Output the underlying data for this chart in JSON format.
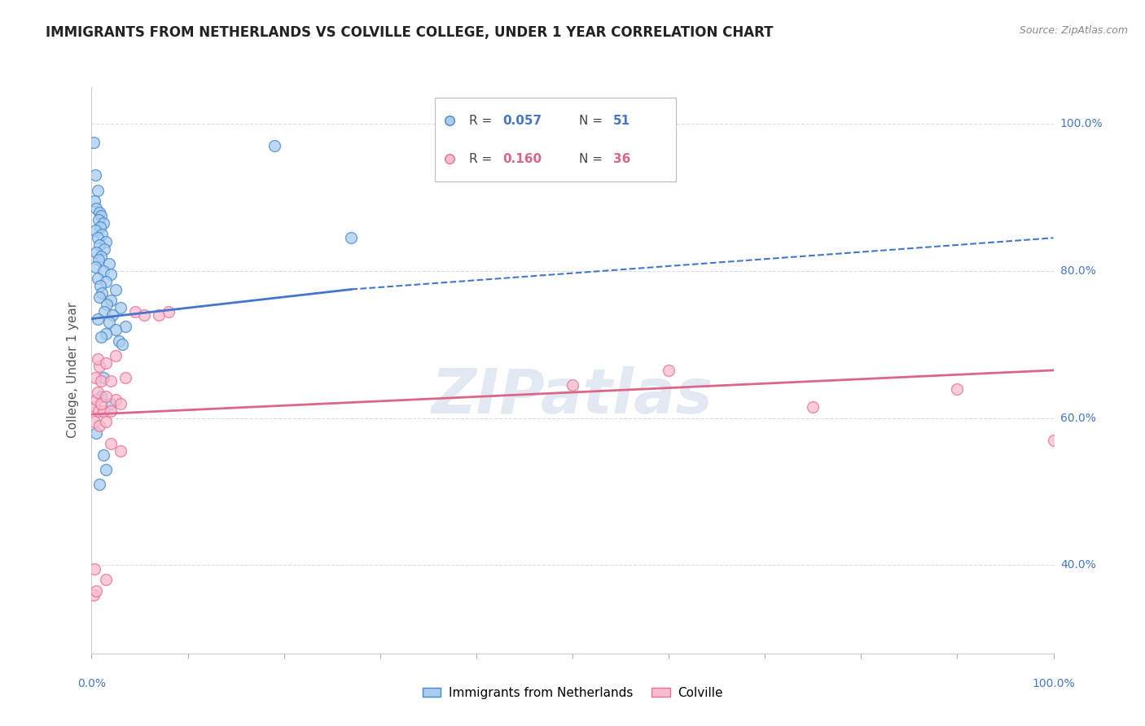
{
  "title": "IMMIGRANTS FROM NETHERLANDS VS COLVILLE COLLEGE, UNDER 1 YEAR CORRELATION CHART",
  "source": "Source: ZipAtlas.com",
  "ylabel": "College, Under 1 year",
  "watermark": "ZIPatlas",
  "legend_blue_r": "0.057",
  "legend_blue_n": "51",
  "legend_pink_r": "0.160",
  "legend_pink_n": "36",
  "blue_scatter": [
    [
      0.2,
      97.5
    ],
    [
      0.4,
      93.0
    ],
    [
      0.6,
      91.0
    ],
    [
      0.3,
      89.5
    ],
    [
      0.5,
      88.5
    ],
    [
      0.8,
      88.0
    ],
    [
      1.0,
      87.5
    ],
    [
      0.7,
      87.0
    ],
    [
      1.2,
      86.5
    ],
    [
      0.9,
      86.0
    ],
    [
      0.4,
      85.5
    ],
    [
      1.1,
      85.0
    ],
    [
      0.6,
      84.5
    ],
    [
      1.5,
      84.0
    ],
    [
      0.8,
      83.5
    ],
    [
      1.3,
      83.0
    ],
    [
      0.5,
      82.5
    ],
    [
      1.0,
      82.0
    ],
    [
      0.7,
      81.5
    ],
    [
      1.8,
      81.0
    ],
    [
      0.4,
      80.5
    ],
    [
      1.2,
      80.0
    ],
    [
      2.0,
      79.5
    ],
    [
      0.6,
      79.0
    ],
    [
      1.5,
      78.5
    ],
    [
      0.9,
      78.0
    ],
    [
      2.5,
      77.5
    ],
    [
      1.1,
      77.0
    ],
    [
      0.8,
      76.5
    ],
    [
      2.0,
      76.0
    ],
    [
      1.6,
      75.5
    ],
    [
      3.0,
      75.0
    ],
    [
      1.3,
      74.5
    ],
    [
      2.2,
      74.0
    ],
    [
      0.6,
      73.5
    ],
    [
      1.8,
      73.0
    ],
    [
      3.5,
      72.5
    ],
    [
      2.5,
      72.0
    ],
    [
      1.5,
      71.5
    ],
    [
      1.0,
      71.0
    ],
    [
      2.8,
      70.5
    ],
    [
      3.2,
      70.0
    ],
    [
      1.2,
      65.5
    ],
    [
      1.0,
      63.0
    ],
    [
      2.0,
      62.0
    ],
    [
      0.5,
      58.0
    ],
    [
      1.2,
      55.0
    ],
    [
      1.5,
      53.0
    ],
    [
      0.8,
      51.0
    ],
    [
      19.0,
      97.0
    ],
    [
      27.0,
      84.5
    ]
  ],
  "pink_scatter": [
    [
      0.2,
      36.0
    ],
    [
      0.5,
      36.5
    ],
    [
      0.3,
      59.5
    ],
    [
      0.8,
      59.0
    ],
    [
      1.5,
      59.5
    ],
    [
      0.4,
      61.5
    ],
    [
      0.7,
      61.0
    ],
    [
      1.2,
      61.0
    ],
    [
      2.0,
      61.0
    ],
    [
      0.5,
      62.5
    ],
    [
      1.0,
      62.0
    ],
    [
      2.5,
      62.5
    ],
    [
      3.0,
      62.0
    ],
    [
      0.6,
      63.5
    ],
    [
      1.5,
      63.0
    ],
    [
      0.4,
      65.5
    ],
    [
      1.0,
      65.0
    ],
    [
      2.0,
      65.0
    ],
    [
      3.5,
      65.5
    ],
    [
      0.8,
      67.0
    ],
    [
      4.5,
      74.5
    ],
    [
      5.5,
      74.0
    ],
    [
      7.0,
      74.0
    ],
    [
      8.0,
      74.5
    ],
    [
      2.5,
      68.5
    ],
    [
      0.6,
      68.0
    ],
    [
      1.5,
      67.5
    ],
    [
      2.0,
      56.5
    ],
    [
      3.0,
      55.5
    ],
    [
      0.3,
      39.5
    ],
    [
      1.5,
      38.0
    ],
    [
      50.0,
      64.5
    ],
    [
      60.0,
      66.5
    ],
    [
      75.0,
      61.5
    ],
    [
      90.0,
      64.0
    ],
    [
      100.0,
      57.0
    ]
  ],
  "blue_line_solid": {
    "x0": 0.0,
    "x1": 27.0,
    "y0": 73.5,
    "y1": 77.5
  },
  "blue_line_dashed": {
    "x0": 27.0,
    "x1": 100.0,
    "y0": 77.5,
    "y1": 84.5
  },
  "pink_line": {
    "x0": 0.0,
    "x1": 100.0,
    "y0": 60.5,
    "y1": 66.5
  },
  "xlim": [
    0,
    100
  ],
  "ylim": [
    28,
    105
  ],
  "blue_fill_color": "#aaccee",
  "blue_edge_color": "#4488cc",
  "pink_fill_color": "#f8bcd0",
  "pink_edge_color": "#e87090",
  "blue_line_color": "#4477cc",
  "pink_line_color": "#dd6688",
  "bg_color": "#ffffff",
  "grid_color": "#dddddd",
  "title_color": "#222222",
  "axis_label_color": "#555555",
  "tick_label_color": "#4477cc"
}
